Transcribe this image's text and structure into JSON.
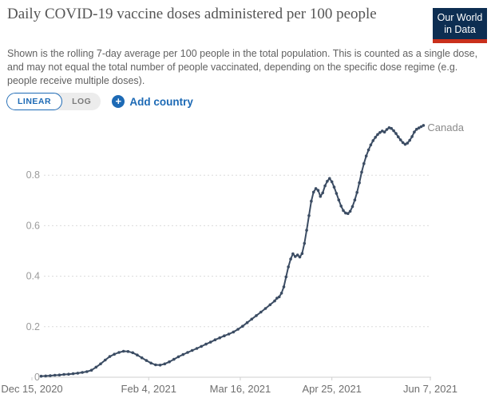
{
  "header": {
    "title": "Daily COVID-19 vaccine doses administered per 100 people",
    "subtitle": "Shown is the rolling 7-day average per 100 people in the total population. This is counted as a single dose, and may not equal the total number of people vaccinated, depending on the specific dose regime (e.g. people receive multiple doses).",
    "logo": {
      "line1": "Our World",
      "line2": "in Data"
    }
  },
  "controls": {
    "linear_label": "LINEAR",
    "log_label": "LOG",
    "plus_icon": "+",
    "add_country_label": "Add country"
  },
  "colors": {
    "accent_blue": "#1d6ab5",
    "logo_navy": "#0d2e52",
    "logo_red": "#c9301c",
    "line": "#3b4c63",
    "grid": "#dcdcdc",
    "axis": "#cfcfcf",
    "entity_label": "#8a8a8a"
  },
  "chart_data": {
    "type": "line",
    "title": "Daily COVID-19 vaccine doses administered per 100 people",
    "xlabel": "",
    "ylabel": "",
    "grid": "dashed horizontal",
    "legend_position": "end-of-line label",
    "x_axis": {
      "unit": "days since Dec 15, 2020",
      "ticks": [
        {
          "label": "Dec 15, 2020",
          "day": 0
        },
        {
          "label": "Feb 4, 2021",
          "day": 51
        },
        {
          "label": "Mar 16, 2021",
          "day": 91
        },
        {
          "label": "Apr 25, 2021",
          "day": 131
        },
        {
          "label": "Jun 7, 2021",
          "day": 174
        }
      ]
    },
    "y_axis": {
      "ticks": [
        0,
        0.2,
        0.4,
        0.6,
        0.8
      ],
      "range": [
        0,
        1.02
      ]
    },
    "series": [
      {
        "name": "Canada",
        "points": [
          [
            4,
            0.004
          ],
          [
            6,
            0.005
          ],
          [
            8,
            0.006
          ],
          [
            10,
            0.008
          ],
          [
            12,
            0.009
          ],
          [
            14,
            0.011
          ],
          [
            16,
            0.012
          ],
          [
            18,
            0.014
          ],
          [
            20,
            0.016
          ],
          [
            22,
            0.019
          ],
          [
            24,
            0.022
          ],
          [
            26,
            0.028
          ],
          [
            28,
            0.04
          ],
          [
            30,
            0.053
          ],
          [
            32,
            0.068
          ],
          [
            34,
            0.082
          ],
          [
            36,
            0.091
          ],
          [
            38,
            0.098
          ],
          [
            40,
            0.103
          ],
          [
            42,
            0.102
          ],
          [
            44,
            0.097
          ],
          [
            46,
            0.088
          ],
          [
            48,
            0.077
          ],
          [
            50,
            0.066
          ],
          [
            52,
            0.056
          ],
          [
            54,
            0.049
          ],
          [
            56,
            0.048
          ],
          [
            58,
            0.053
          ],
          [
            60,
            0.061
          ],
          [
            62,
            0.071
          ],
          [
            64,
            0.081
          ],
          [
            66,
            0.09
          ],
          [
            68,
            0.098
          ],
          [
            70,
            0.106
          ],
          [
            72,
            0.114
          ],
          [
            74,
            0.122
          ],
          [
            76,
            0.131
          ],
          [
            78,
            0.139
          ],
          [
            80,
            0.148
          ],
          [
            82,
            0.156
          ],
          [
            84,
            0.164
          ],
          [
            86,
            0.171
          ],
          [
            88,
            0.179
          ],
          [
            90,
            0.19
          ],
          [
            92,
            0.202
          ],
          [
            94,
            0.216
          ],
          [
            96,
            0.23
          ],
          [
            98,
            0.244
          ],
          [
            100,
            0.258
          ],
          [
            102,
            0.272
          ],
          [
            104,
            0.287
          ],
          [
            106,
            0.302
          ],
          [
            107,
            0.313
          ],
          [
            108,
            0.318
          ],
          [
            109,
            0.333
          ],
          [
            110,
            0.358
          ],
          [
            111,
            0.397
          ],
          [
            112,
            0.437
          ],
          [
            113,
            0.468
          ],
          [
            114,
            0.489
          ],
          [
            115,
            0.478
          ],
          [
            116,
            0.484
          ],
          [
            117,
            0.476
          ],
          [
            118,
            0.49
          ],
          [
            119,
            0.53
          ],
          [
            120,
            0.582
          ],
          [
            121,
            0.64
          ],
          [
            122,
            0.697
          ],
          [
            123,
            0.733
          ],
          [
            124,
            0.747
          ],
          [
            125,
            0.74
          ],
          [
            126,
            0.716
          ],
          [
            127,
            0.73
          ],
          [
            128,
            0.758
          ],
          [
            129,
            0.776
          ],
          [
            130,
            0.787
          ],
          [
            131,
            0.774
          ],
          [
            132,
            0.753
          ],
          [
            133,
            0.728
          ],
          [
            134,
            0.702
          ],
          [
            135,
            0.678
          ],
          [
            136,
            0.66
          ],
          [
            137,
            0.65
          ],
          [
            138,
            0.648
          ],
          [
            139,
            0.657
          ],
          [
            140,
            0.676
          ],
          [
            141,
            0.702
          ],
          [
            142,
            0.732
          ],
          [
            143,
            0.77
          ],
          [
            144,
            0.812
          ],
          [
            145,
            0.846
          ],
          [
            146,
            0.876
          ],
          [
            147,
            0.9
          ],
          [
            148,
            0.92
          ],
          [
            149,
            0.937
          ],
          [
            150,
            0.95
          ],
          [
            151,
            0.961
          ],
          [
            152,
            0.969
          ],
          [
            153,
            0.975
          ],
          [
            154,
            0.971
          ],
          [
            155,
            0.981
          ],
          [
            156,
            0.988
          ],
          [
            157,
            0.985
          ],
          [
            158,
            0.976
          ],
          [
            159,
            0.965
          ],
          [
            160,
            0.952
          ],
          [
            161,
            0.94
          ],
          [
            162,
            0.929
          ],
          [
            163,
            0.922
          ],
          [
            164,
            0.927
          ],
          [
            165,
            0.938
          ],
          [
            166,
            0.953
          ],
          [
            167,
            0.971
          ],
          [
            168,
            0.982
          ],
          [
            169,
            0.987
          ],
          [
            170,
            0.992
          ],
          [
            171,
            0.997
          ]
        ]
      }
    ]
  }
}
